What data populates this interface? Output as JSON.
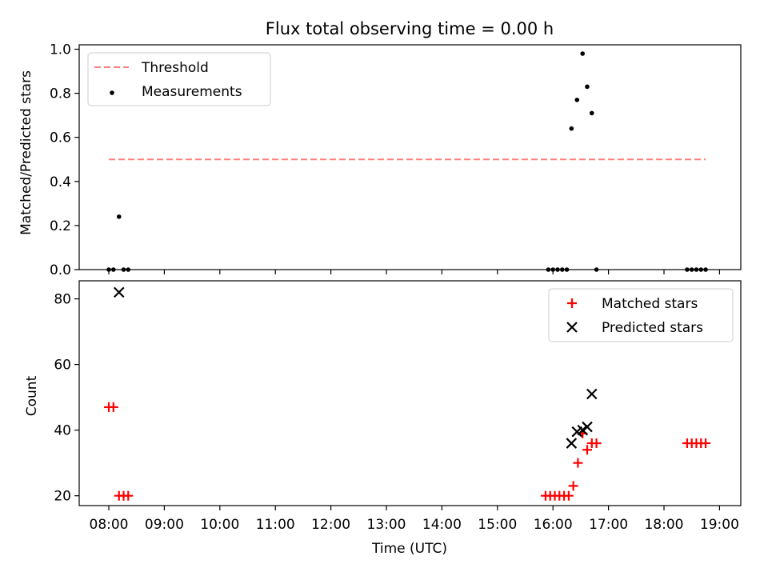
{
  "figure": {
    "title": "Flux total observing time = 0.00 h",
    "xlabel": "Time (UTC)"
  },
  "chart_data": [
    {
      "type": "scatter",
      "ylabel": "Matched/Predicted stars",
      "ylim": [
        0,
        1.02
      ],
      "yticks": [
        0.0,
        0.2,
        0.4,
        0.6,
        0.8,
        1.0
      ],
      "ytick_labels": [
        "0.0",
        "0.2",
        "0.4",
        "0.6",
        "0.8",
        "1.0"
      ],
      "legend_position": "top-left",
      "threshold": {
        "name": "Threshold",
        "y": 0.5,
        "x_range": [
          "08:00",
          "18:45"
        ],
        "color": "#ff7f7f"
      },
      "series": [
        {
          "name": "Measurements",
          "color": "#000000",
          "marker": "dot",
          "points": [
            [
              "08:00",
              0.0
            ],
            [
              "08:05",
              0.0
            ],
            [
              "08:11",
              0.24
            ],
            [
              "08:16",
              0.0
            ],
            [
              "08:21",
              0.0
            ],
            [
              "15:55",
              0.0
            ],
            [
              "16:00",
              0.0
            ],
            [
              "16:05",
              0.0
            ],
            [
              "16:10",
              0.0
            ],
            [
              "16:15",
              0.0
            ],
            [
              "16:20",
              0.64
            ],
            [
              "16:26",
              0.77
            ],
            [
              "16:32",
              0.98
            ],
            [
              "16:37",
              0.83
            ],
            [
              "16:42",
              0.71
            ],
            [
              "16:47",
              0.0
            ],
            [
              "18:25",
              0.0
            ],
            [
              "18:30",
              0.0
            ],
            [
              "18:35",
              0.0
            ],
            [
              "18:40",
              0.0
            ],
            [
              "18:45",
              0.0
            ]
          ]
        }
      ]
    },
    {
      "type": "scatter",
      "ylabel": "Count",
      "ylim": [
        17,
        85.5
      ],
      "yticks": [
        20,
        40,
        60,
        80
      ],
      "ytick_labels": [
        "20",
        "40",
        "60",
        "80"
      ],
      "legend_position": "top-right",
      "series": [
        {
          "name": "Matched stars",
          "color": "#ff0000",
          "marker": "plus",
          "points": [
            [
              "08:00",
              47
            ],
            [
              "08:05",
              47
            ],
            [
              "08:11",
              20
            ],
            [
              "08:16",
              20
            ],
            [
              "08:21",
              20
            ],
            [
              "15:52",
              20
            ],
            [
              "15:57",
              20
            ],
            [
              "16:02",
              20
            ],
            [
              "16:07",
              20
            ],
            [
              "16:12",
              20
            ],
            [
              "16:17",
              20
            ],
            [
              "16:22",
              23
            ],
            [
              "16:27",
              30
            ],
            [
              "16:32",
              39
            ],
            [
              "16:37",
              34
            ],
            [
              "16:42",
              36
            ],
            [
              "16:47",
              36
            ],
            [
              "18:25",
              36
            ],
            [
              "18:30",
              36
            ],
            [
              "18:35",
              36
            ],
            [
              "18:40",
              36
            ],
            [
              "18:45",
              36
            ]
          ]
        },
        {
          "name": "Predicted stars",
          "color": "#000000",
          "marker": "x",
          "points": [
            [
              "08:11",
              82
            ],
            [
              "16:20",
              36
            ],
            [
              "16:26",
              39.5
            ],
            [
              "16:32",
              40
            ],
            [
              "16:37",
              41
            ],
            [
              "16:42",
              51
            ]
          ]
        }
      ]
    }
  ],
  "xaxis": {
    "range": [
      "07:28",
      "19:23"
    ],
    "ticks": [
      "08:00",
      "09:00",
      "10:00",
      "11:00",
      "12:00",
      "13:00",
      "14:00",
      "15:00",
      "16:00",
      "17:00",
      "18:00",
      "19:00"
    ]
  }
}
